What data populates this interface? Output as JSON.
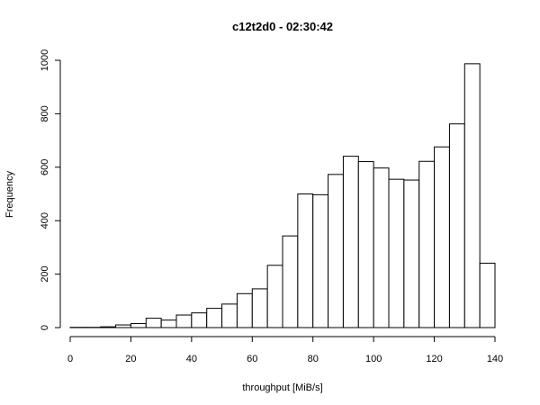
{
  "chart_data": {
    "type": "histogram",
    "title": "c12t2d0 - 02:30:42",
    "x_label": "throughput [MiB/s]",
    "y_label": "Frequency",
    "bins": [
      0,
      5,
      10,
      15,
      20,
      25,
      30,
      35,
      40,
      45,
      50,
      55,
      60,
      65,
      70,
      75,
      80,
      85,
      90,
      95,
      100,
      105,
      110,
      115,
      120,
      125,
      130,
      135,
      140
    ],
    "values": [
      1,
      1,
      3,
      10,
      15,
      35,
      28,
      47,
      55,
      72,
      88,
      127,
      145,
      233,
      343,
      500,
      497,
      573,
      641,
      621,
      597,
      555,
      552,
      622,
      676,
      762,
      987,
      241
    ],
    "color": "#ffffff",
    "xlim": [
      0,
      140
    ],
    "xticks": [
      0,
      20,
      40,
      60,
      80,
      100,
      120,
      140
    ],
    "ylim": [
      0,
      1000
    ],
    "yticks": [
      0,
      200,
      400,
      600,
      800,
      1000
    ]
  }
}
